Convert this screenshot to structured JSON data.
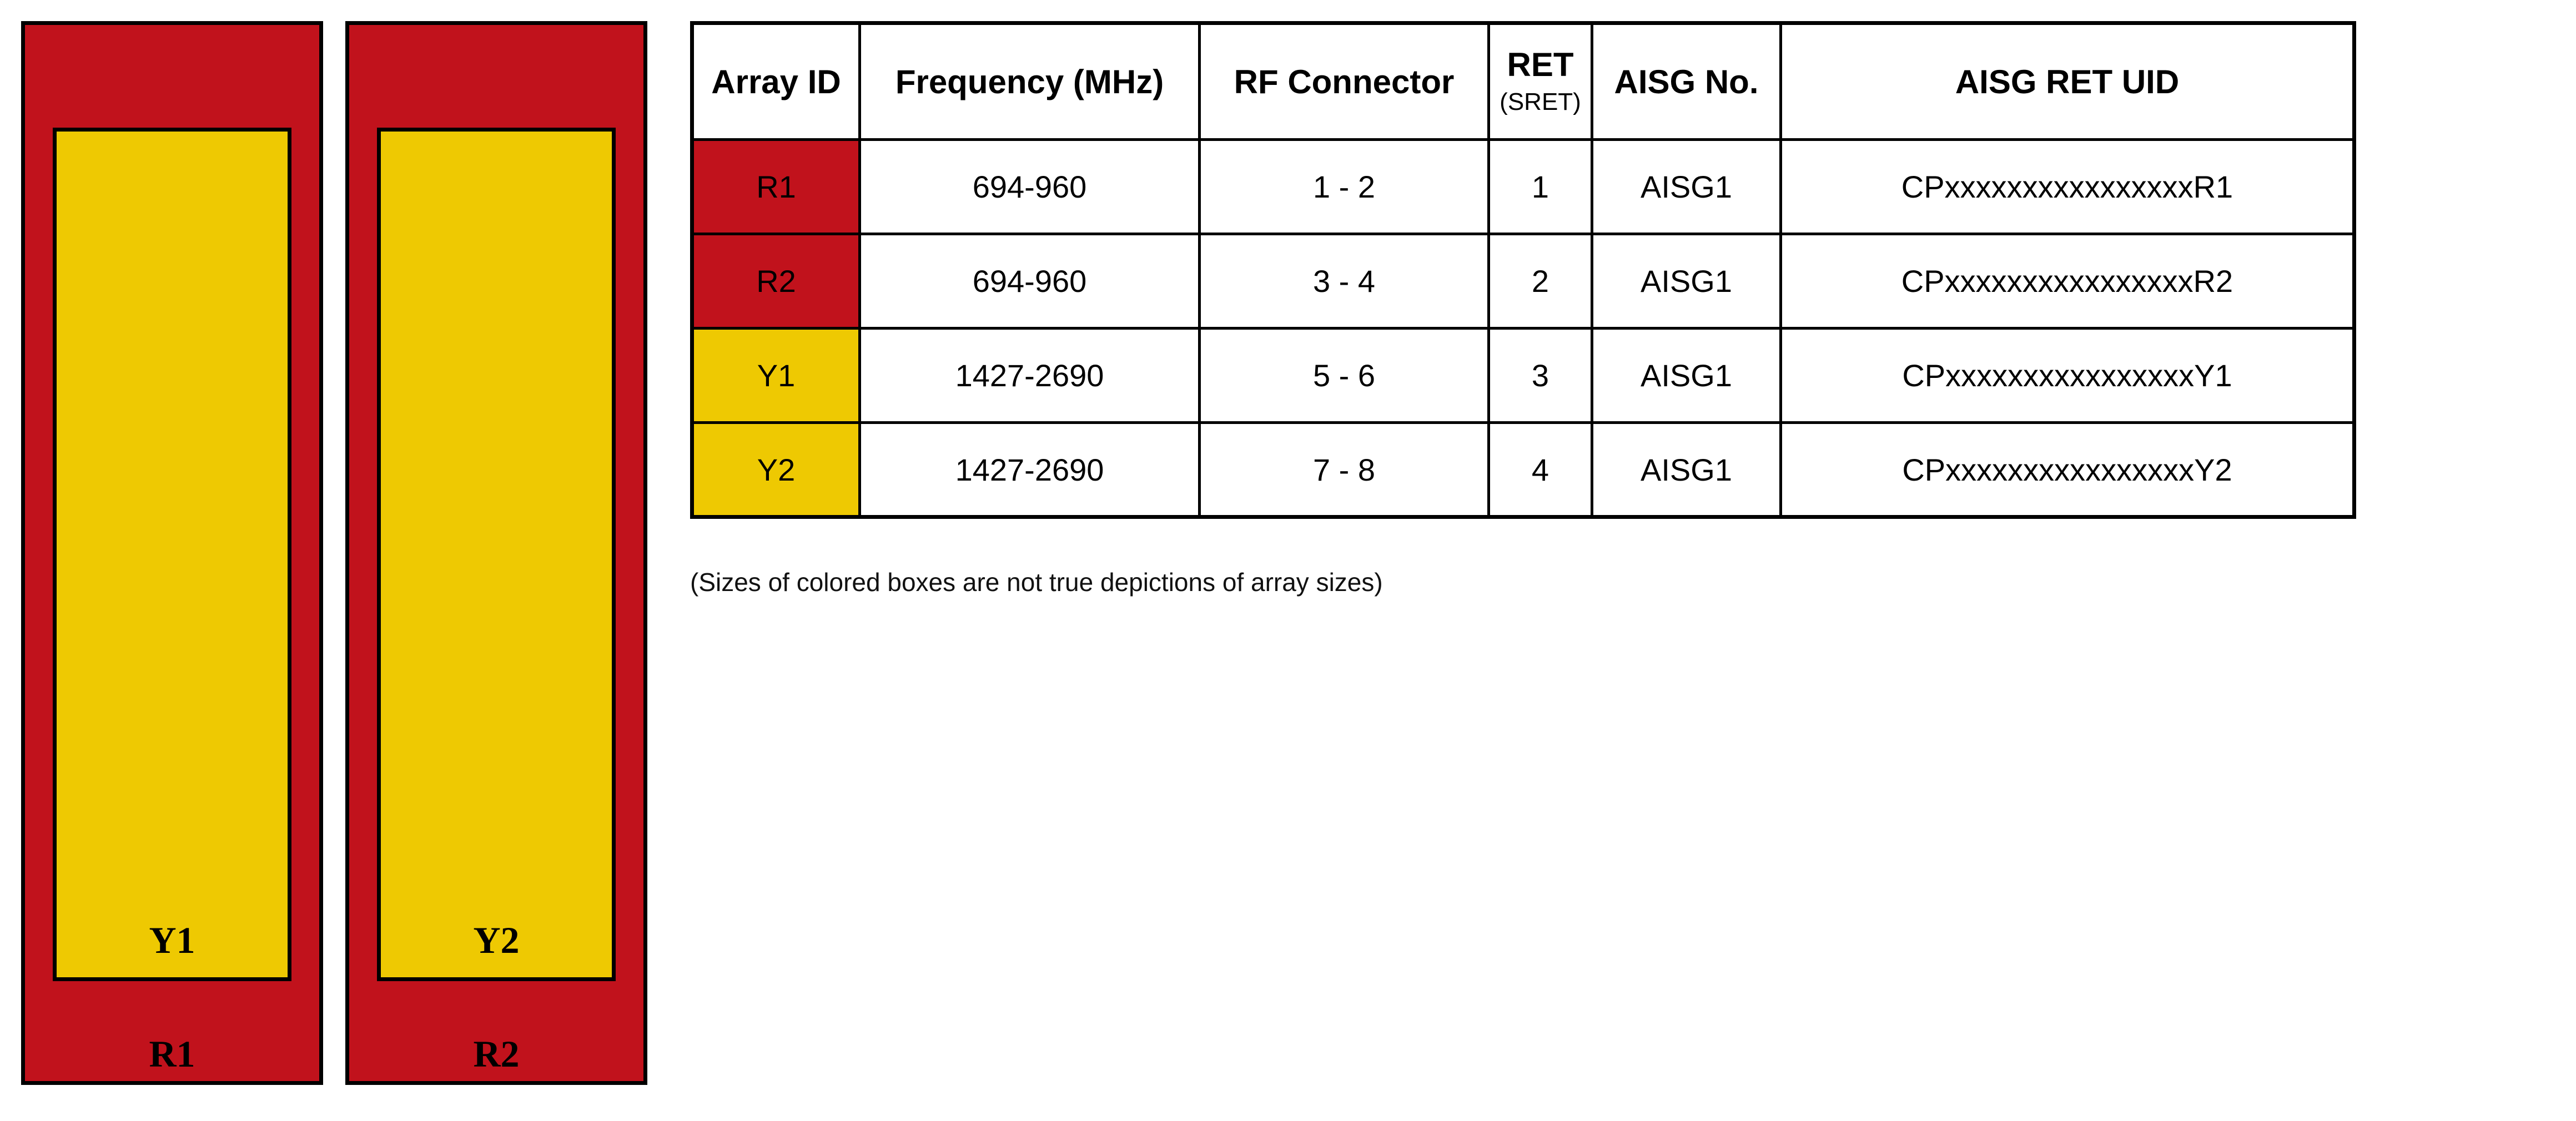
{
  "panels": [
    {
      "inner_label": "Y1",
      "outer_label": "R1"
    },
    {
      "inner_label": "Y2",
      "outer_label": "R2"
    }
  ],
  "table": {
    "headers": {
      "array_id": "Array ID",
      "frequency": "Frequency (MHz)",
      "rf_connector": "RF Connector",
      "ret": "RET",
      "ret_sub": "(SRET)",
      "aisg_no": "AISG No.",
      "aisg_ret_uid": "AISG RET UID"
    },
    "rows": [
      {
        "array_id": "R1",
        "color": "red",
        "frequency": "694-960",
        "rf_connector": "1 - 2",
        "ret": "1",
        "aisg_no": "AISG1",
        "aisg_ret_uid": "CPxxxxxxxxxxxxxxxxR1"
      },
      {
        "array_id": "R2",
        "color": "red",
        "frequency": "694-960",
        "rf_connector": "3 - 4",
        "ret": "2",
        "aisg_no": "AISG1",
        "aisg_ret_uid": "CPxxxxxxxxxxxxxxxxR2"
      },
      {
        "array_id": "Y1",
        "color": "yellow",
        "frequency": "1427-2690",
        "rf_connector": "5 - 6",
        "ret": "3",
        "aisg_no": "AISG1",
        "aisg_ret_uid": "CPxxxxxxxxxxxxxxxxY1"
      },
      {
        "array_id": "Y2",
        "color": "yellow",
        "frequency": "1427-2690",
        "rf_connector": "7 - 8",
        "ret": "4",
        "aisg_no": "AISG1",
        "aisg_ret_uid": "CPxxxxxxxxxxxxxxxxY2"
      }
    ]
  },
  "note": "(Sizes of colored boxes are not true depictions of array sizes)",
  "colors": {
    "red": "#C1121C",
    "yellow": "#EEC902",
    "border": "#000000",
    "text": "#000000"
  }
}
